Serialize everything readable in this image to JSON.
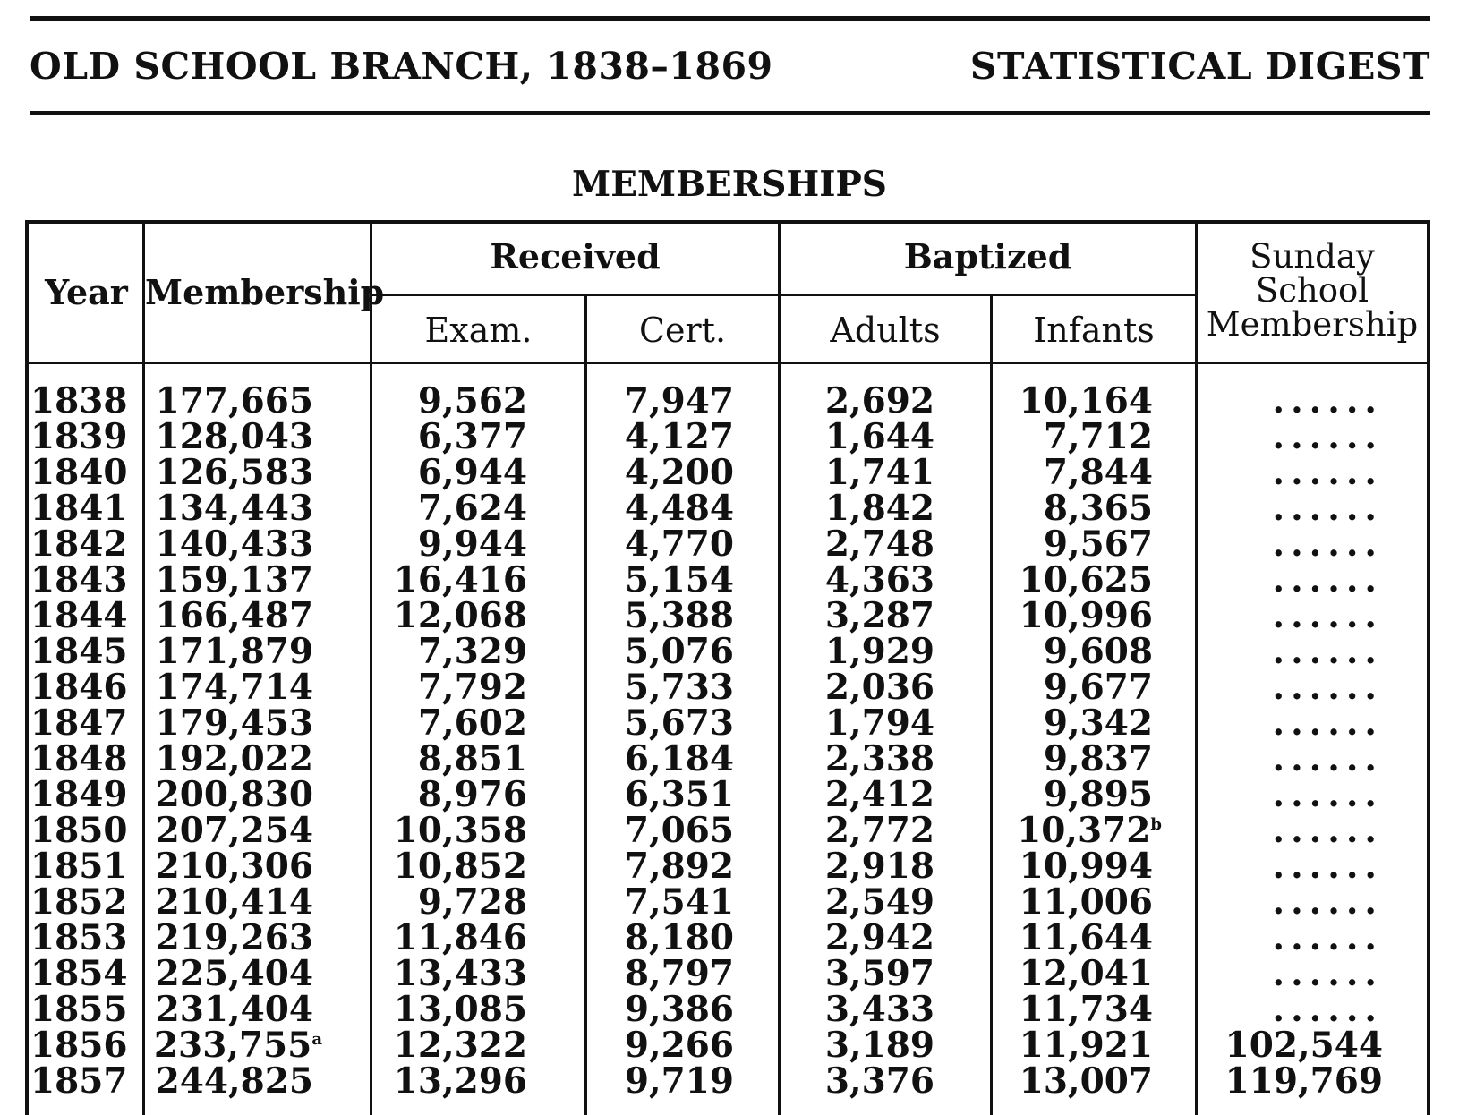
{
  "header": {
    "left_title": "OLD SCHOOL BRANCH, 1838–1869",
    "right_title": "STATISTICAL DIGEST"
  },
  "table": {
    "title": "MEMBERSHIPS",
    "headers": {
      "year": "Year",
      "membership": "Membership",
      "received": "Received",
      "exam": "Exam.",
      "cert": "Cert.",
      "baptized": "Baptized",
      "adults": "Adults",
      "infants": "Infants",
      "sunday_line1": "Sunday",
      "sunday_line2": "School",
      "sunday_line3": "Membership"
    },
    "rows": [
      {
        "year": "1838",
        "membership": "177,665",
        "exam": "9,562",
        "cert": "7,947",
        "adults": "2,692",
        "infants": "10,164",
        "sunday": "......"
      },
      {
        "year": "1839",
        "membership": "128,043",
        "exam": "6,377",
        "cert": "4,127",
        "adults": "1,644",
        "infants": "7,712",
        "sunday": "......"
      },
      {
        "year": "1840",
        "membership": "126,583",
        "exam": "6,944",
        "cert": "4,200",
        "adults": "1,741",
        "infants": "7,844",
        "sunday": "......"
      },
      {
        "year": "1841",
        "membership": "134,443",
        "exam": "7,624",
        "cert": "4,484",
        "adults": "1,842",
        "infants": "8,365",
        "sunday": "......"
      },
      {
        "year": "1842",
        "membership": "140,433",
        "exam": "9,944",
        "cert": "4,770",
        "adults": "2,748",
        "infants": "9,567",
        "sunday": "......"
      },
      {
        "year": "1843",
        "membership": "159,137",
        "exam": "16,416",
        "cert": "5,154",
        "adults": "4,363",
        "infants": "10,625",
        "sunday": "......"
      },
      {
        "year": "1844",
        "membership": "166,487",
        "exam": "12,068",
        "cert": "5,388",
        "adults": "3,287",
        "infants": "10,996",
        "sunday": "......"
      },
      {
        "year": "1845",
        "membership": "171,879",
        "exam": "7,329",
        "cert": "5,076",
        "adults": "1,929",
        "infants": "9,608",
        "sunday": "......"
      },
      {
        "year": "1846",
        "membership": "174,714",
        "exam": "7,792",
        "cert": "5,733",
        "adults": "2,036",
        "infants": "9,677",
        "sunday": "......"
      },
      {
        "year": "1847",
        "membership": "179,453",
        "exam": "7,602",
        "cert": "5,673",
        "adults": "1,794",
        "infants": "9,342",
        "sunday": "......"
      },
      {
        "year": "1848",
        "membership": "192,022",
        "exam": "8,851",
        "cert": "6,184",
        "adults": "2,338",
        "infants": "9,837",
        "sunday": "......"
      },
      {
        "year": "1849",
        "membership": "200,830",
        "exam": "8,976",
        "cert": "6,351",
        "adults": "2,412",
        "infants": "9,895",
        "sunday": "......"
      },
      {
        "year": "1850",
        "membership": "207,254",
        "exam": "10,358",
        "cert": "7,065",
        "adults": "2,772",
        "infants": "10,372",
        "infants_note": "b",
        "sunday": "......"
      },
      {
        "year": "1851",
        "membership": "210,306",
        "exam": "10,852",
        "cert": "7,892",
        "adults": "2,918",
        "infants": "10,994",
        "sunday": "......"
      },
      {
        "year": "1852",
        "membership": "210,414",
        "exam": "9,728",
        "cert": "7,541",
        "adults": "2,549",
        "infants": "11,006",
        "sunday": "......"
      },
      {
        "year": "1853",
        "membership": "219,263",
        "exam": "11,846",
        "cert": "8,180",
        "adults": "2,942",
        "infants": "11,644",
        "sunday": "......"
      },
      {
        "year": "1854",
        "membership": "225,404",
        "exam": "13,433",
        "cert": "8,797",
        "adults": "3,597",
        "infants": "12,041",
        "sunday": "......"
      },
      {
        "year": "1855",
        "membership": "231,404",
        "exam": "13,085",
        "cert": "9,386",
        "adults": "3,433",
        "infants": "11,734",
        "sunday": "......"
      },
      {
        "year": "1856",
        "membership": "233,755",
        "membership_note": "a",
        "exam": "12,322",
        "cert": "9,266",
        "adults": "3,189",
        "infants": "11,921",
        "sunday": "102,544"
      },
      {
        "year": "1857",
        "membership": "244,825",
        "exam": "13,296",
        "cert": "9,719",
        "adults": "3,376",
        "infants": "13,007",
        "sunday": "119,769"
      }
    ]
  }
}
